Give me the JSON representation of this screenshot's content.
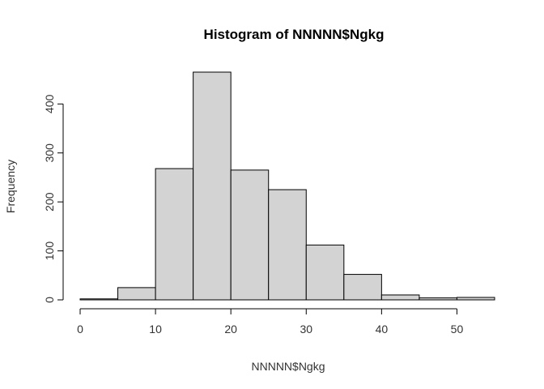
{
  "chart_data": {
    "type": "bar",
    "subtype": "histogram",
    "title": "Histogram of NNNNN$Ngkg",
    "xlabel": "NNNNN$Ngkg",
    "ylabel": "Frequency",
    "bin_edges": [
      0,
      5,
      10,
      15,
      20,
      25,
      30,
      35,
      40,
      45,
      50,
      55
    ],
    "values": [
      2,
      25,
      268,
      465,
      265,
      225,
      112,
      52,
      10,
      4,
      5
    ],
    "xlim": [
      0,
      55
    ],
    "ylim": [
      0,
      465
    ],
    "x_ticks": [
      0,
      10,
      20,
      30,
      40,
      50
    ],
    "y_ticks": [
      0,
      100,
      200,
      300,
      400
    ],
    "bar_fill": "#d3d3d3",
    "bar_stroke": "#000000",
    "grid": false,
    "legend": "none"
  }
}
